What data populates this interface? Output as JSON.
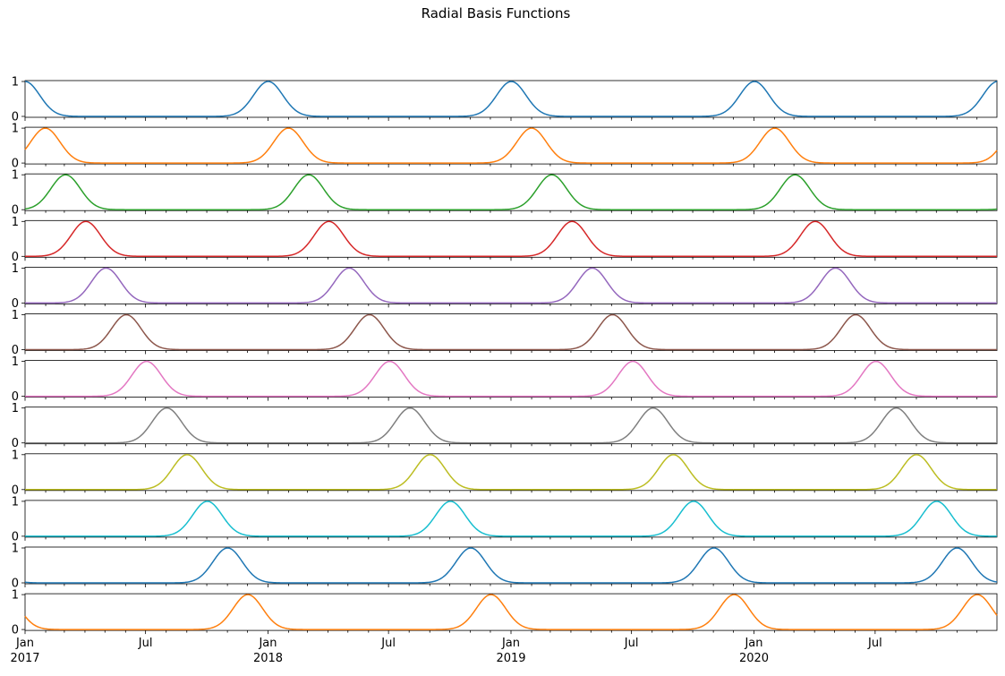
{
  "chart_data": {
    "type": "line",
    "title": "Radial Basis Functions",
    "xlabel": "",
    "ylabel": "",
    "x_range": [
      "2017-01-01",
      "2020-12-31"
    ],
    "ylim": [
      0,
      1
    ],
    "y_ticks": [
      "0",
      "1"
    ],
    "x_major_ticks": [
      {
        "date": "2017-01-01",
        "label": "Jan",
        "year_label": "2017"
      },
      {
        "date": "2017-07-01",
        "label": "Jul",
        "year_label": ""
      },
      {
        "date": "2018-01-01",
        "label": "Jan",
        "year_label": "2018"
      },
      {
        "date": "2018-07-01",
        "label": "Jul",
        "year_label": ""
      },
      {
        "date": "2019-01-01",
        "label": "Jan",
        "year_label": "2019"
      },
      {
        "date": "2019-07-01",
        "label": "Jul",
        "year_label": ""
      },
      {
        "date": "2020-01-01",
        "label": "Jan",
        "year_label": "2020"
      },
      {
        "date": "2020-07-01",
        "label": "Jul",
        "year_label": ""
      }
    ],
    "x_minor_ticks": "monthly",
    "grid": false,
    "function": "periodic gaussian, yearly period",
    "series": [
      {
        "center_day_of_year": 0,
        "color": "#1f77b4"
      },
      {
        "center_day_of_year": 30.4,
        "color": "#ff7f0e"
      },
      {
        "center_day_of_year": 60.9,
        "color": "#2ca02c"
      },
      {
        "center_day_of_year": 91.3,
        "color": "#d62728"
      },
      {
        "center_day_of_year": 121.7,
        "color": "#9467bd"
      },
      {
        "center_day_of_year": 152.1,
        "color": "#8c564b"
      },
      {
        "center_day_of_year": 182.6,
        "color": "#e377c2"
      },
      {
        "center_day_of_year": 213.0,
        "color": "#7f7f7f"
      },
      {
        "center_day_of_year": 243.4,
        "color": "#bcbd22"
      },
      {
        "center_day_of_year": 273.8,
        "color": "#17becf"
      },
      {
        "center_day_of_year": 304.3,
        "color": "#1f77b4"
      },
      {
        "center_day_of_year": 334.7,
        "color": "#ff7f0e"
      }
    ]
  }
}
